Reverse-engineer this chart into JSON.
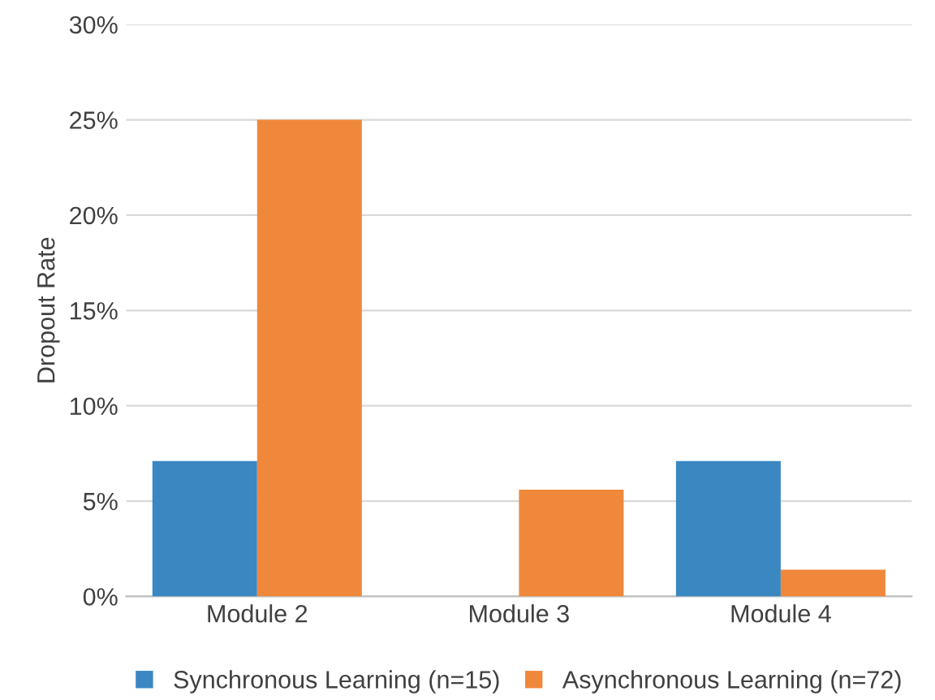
{
  "chart_data": {
    "type": "bar",
    "ylabel": "Dropout Rate",
    "categories": [
      "Module 2",
      "Module 3",
      "Module 4"
    ],
    "series": [
      {
        "name": "Synchronous Learning (n=15)",
        "color": "#3a87c2",
        "values": [
          7.1,
          0,
          7.1
        ]
      },
      {
        "name": "Asynchronous Learning (n=72)",
        "color": "#f0883c",
        "values": [
          25,
          5.6,
          1.4
        ]
      }
    ],
    "ylim": [
      0,
      30
    ],
    "yticks": [
      {
        "value": 0,
        "label": "0%"
      },
      {
        "value": 5,
        "label": "5%"
      },
      {
        "value": 10,
        "label": "10%"
      },
      {
        "value": 15,
        "label": "15%"
      },
      {
        "value": 20,
        "label": "20%"
      },
      {
        "value": 25,
        "label": "25%"
      },
      {
        "value": 30,
        "label": "30%"
      }
    ],
    "grid": "y",
    "legend": "bottom"
  }
}
